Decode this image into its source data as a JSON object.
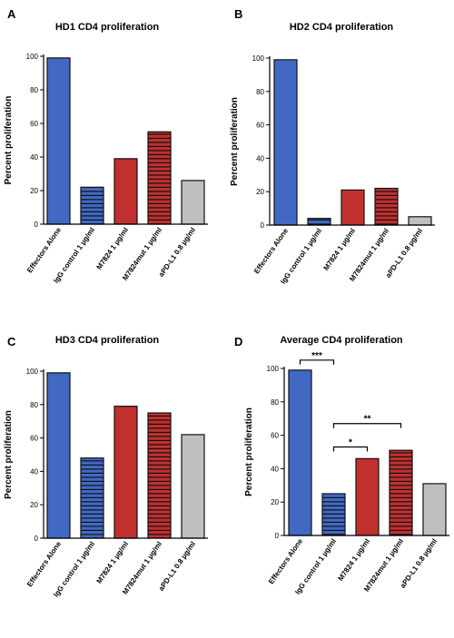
{
  "chart_data": [
    {
      "type": "bar",
      "panel": "A",
      "title": "HD1 CD4 proliferation",
      "ylabel": "Percent proliferation",
      "xlabel": "",
      "ylim": [
        0,
        100
      ],
      "yticks": [
        0,
        20,
        40,
        60,
        80,
        100
      ],
      "categories": [
        "Effectors Alone",
        "IgG control 1 µg/ml",
        "M7824 1 µg/ml",
        "M7824mut 1 µg/ml",
        "aPD-L1 0.8 µg/ml"
      ],
      "values": [
        99,
        22,
        39,
        55,
        26
      ],
      "bar_colors": [
        "#4169c4",
        "#4169c4",
        "#c0302f",
        "#c0302f",
        "#bfbfbf"
      ],
      "bar_patterns": [
        "solid",
        "striped",
        "solid",
        "striped",
        "solid"
      ],
      "significance": []
    },
    {
      "type": "bar",
      "panel": "B",
      "title": "HD2 CD4 proliferation",
      "ylabel": "Percent proliferation",
      "xlabel": "",
      "ylim": [
        0,
        100
      ],
      "yticks": [
        0,
        20,
        40,
        60,
        80,
        100
      ],
      "categories": [
        "Effectors Alone",
        "IgG control 1 µg/ml",
        "M7824 1 µg/ml",
        "M7824mut 1 µg/ml",
        "aPD-L1 0.8 µg/ml"
      ],
      "values": [
        99,
        4,
        21,
        22,
        5
      ],
      "bar_colors": [
        "#4169c4",
        "#4169c4",
        "#c0302f",
        "#c0302f",
        "#bfbfbf"
      ],
      "bar_patterns": [
        "solid",
        "striped",
        "solid",
        "striped",
        "solid"
      ],
      "significance": []
    },
    {
      "type": "bar",
      "panel": "C",
      "title": "HD3 CD4 proliferation",
      "ylabel": "Percent proliferation",
      "xlabel": "",
      "ylim": [
        0,
        100
      ],
      "yticks": [
        0,
        20,
        40,
        60,
        80,
        100
      ],
      "categories": [
        "Effectors Alone",
        "IgG control 1 µg/ml",
        "M7824 1 µg/ml",
        "M7824mut 1 µg/ml",
        "aPD-L1 0.8 µg/ml"
      ],
      "values": [
        99,
        48,
        79,
        75,
        62
      ],
      "bar_colors": [
        "#4169c4",
        "#4169c4",
        "#c0302f",
        "#c0302f",
        "#bfbfbf"
      ],
      "bar_patterns": [
        "solid",
        "striped",
        "solid",
        "striped",
        "solid"
      ],
      "significance": []
    },
    {
      "type": "bar",
      "panel": "D",
      "title": "Average CD4 proliferation",
      "ylabel": "Percent proliferation",
      "xlabel": "",
      "ylim": [
        0,
        100
      ],
      "yticks": [
        0,
        20,
        40,
        60,
        80,
        100
      ],
      "categories": [
        "Effectors Alone",
        "IgG control 1 µg/ml",
        "M7824 1 µg/ml",
        "M7824mut 1 µg/ml",
        "aPD-L1 0.8 µg/ml"
      ],
      "values": [
        99,
        25,
        46,
        51,
        31
      ],
      "bar_colors": [
        "#4169c4",
        "#4169c4",
        "#c0302f",
        "#c0302f",
        "#bfbfbf"
      ],
      "bar_patterns": [
        "solid",
        "striped",
        "solid",
        "striped",
        "solid"
      ],
      "significance": [
        {
          "from": 0,
          "to": 1,
          "label": "***",
          "level": 105
        },
        {
          "from": 1,
          "to": 3,
          "label": "**",
          "level": 67
        },
        {
          "from": 1,
          "to": 2,
          "label": "*",
          "level": 53
        }
      ]
    }
  ]
}
